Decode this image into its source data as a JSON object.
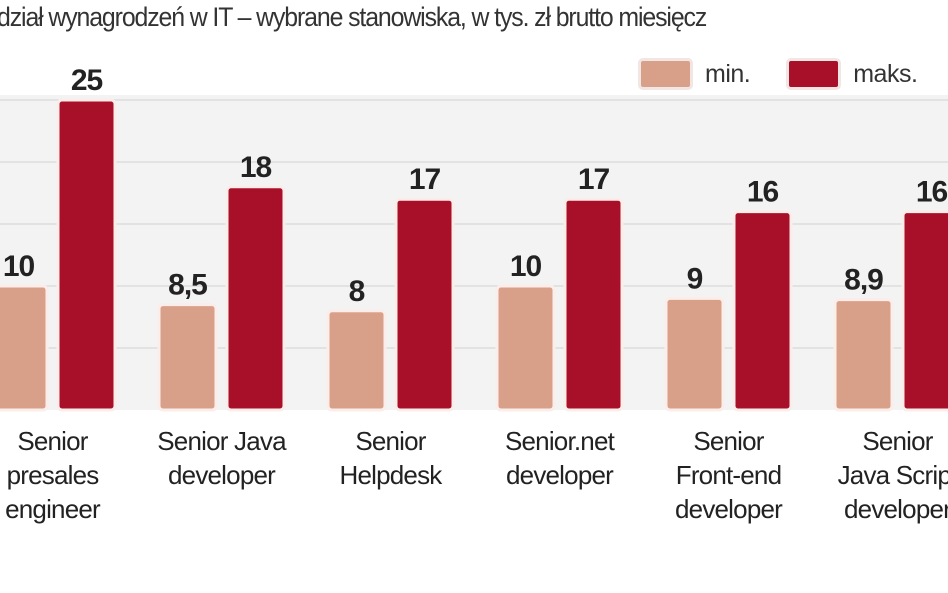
{
  "chart_data": {
    "type": "bar",
    "title": "dział wynagrodzeń w IT – wybrane stanowiska, w tys. zł brutto miesięcz",
    "xlabel": "",
    "ylabel": "",
    "ylim": [
      0,
      25
    ],
    "grid": true,
    "legend_position": "top-right",
    "categories": [
      [
        "Senior",
        "presales",
        "engineer"
      ],
      [
        "Senior Java",
        "developer"
      ],
      [
        "Senior",
        "Helpdesk"
      ],
      [
        "Senior.net",
        "developer"
      ],
      [
        "Senior",
        "Front-end",
        "developer"
      ],
      [
        "Senior",
        "Java Script",
        "developer"
      ]
    ],
    "series": [
      {
        "name": "min.",
        "color": "#d9a089",
        "values": [
          10,
          8.5,
          8,
          10,
          9,
          8.9
        ],
        "labels": [
          "10",
          "8,5",
          "8",
          "10",
          "9",
          "8,9"
        ]
      },
      {
        "name": "maks.",
        "color": "#a8102a",
        "values": [
          25,
          18,
          17,
          17,
          16,
          16
        ],
        "labels": [
          "25",
          "18",
          "17",
          "17",
          "16",
          "16"
        ]
      }
    ]
  }
}
